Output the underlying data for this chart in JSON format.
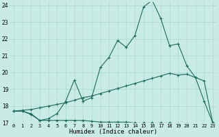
{
  "title": "",
  "xlabel": "Humidex (Indice chaleur)",
  "ylabel": "",
  "bg_color": "#c8ebe5",
  "grid_color": "#a8d8d0",
  "line_color": "#1a6b5a",
  "xlim": [
    -0.5,
    23.5
  ],
  "ylim": [
    17,
    24.2
  ],
  "xticks": [
    0,
    1,
    2,
    3,
    4,
    5,
    6,
    7,
    8,
    9,
    10,
    11,
    12,
    13,
    14,
    15,
    16,
    17,
    18,
    19,
    20,
    21,
    22,
    23
  ],
  "yticks": [
    17,
    18,
    19,
    20,
    21,
    22,
    23,
    24
  ],
  "line1_x": [
    0,
    1,
    2,
    3,
    4,
    5,
    6,
    7,
    8,
    9,
    10,
    11,
    12,
    13,
    14,
    15,
    16,
    17,
    18,
    19,
    20,
    21,
    22,
    23
  ],
  "line1_y": [
    17.7,
    17.7,
    17.5,
    17.15,
    17.15,
    17.15,
    17.15,
    17.15,
    17.15,
    17.1,
    17.05,
    17.05,
    17.05,
    17.05,
    17.0,
    17.0,
    17.0,
    17.0,
    17.0,
    16.95,
    16.95,
    16.9,
    16.85,
    16.85
  ],
  "line2_x": [
    0,
    1,
    2,
    3,
    4,
    5,
    6,
    7,
    8,
    9,
    10,
    11,
    12,
    13,
    14,
    15,
    16,
    17,
    18,
    19,
    20,
    21,
    22,
    23
  ],
  "line2_y": [
    17.7,
    17.75,
    17.8,
    17.9,
    18.0,
    18.1,
    18.2,
    18.35,
    18.5,
    18.6,
    18.75,
    18.9,
    19.05,
    19.2,
    19.35,
    19.5,
    19.65,
    19.8,
    19.95,
    19.85,
    19.9,
    19.7,
    19.5,
    17.0
  ],
  "line3_x": [
    0,
    1,
    2,
    3,
    4,
    5,
    6,
    7,
    8,
    9,
    10,
    11,
    12,
    13,
    14,
    15,
    16,
    17,
    18,
    19,
    20,
    21,
    22,
    23
  ],
  "line3_y": [
    17.7,
    17.7,
    17.55,
    17.15,
    17.25,
    17.55,
    18.3,
    19.55,
    18.3,
    18.5,
    20.3,
    20.9,
    21.9,
    21.5,
    22.2,
    23.9,
    24.3,
    23.2,
    21.6,
    21.7,
    20.4,
    19.7,
    18.3,
    17.0
  ]
}
